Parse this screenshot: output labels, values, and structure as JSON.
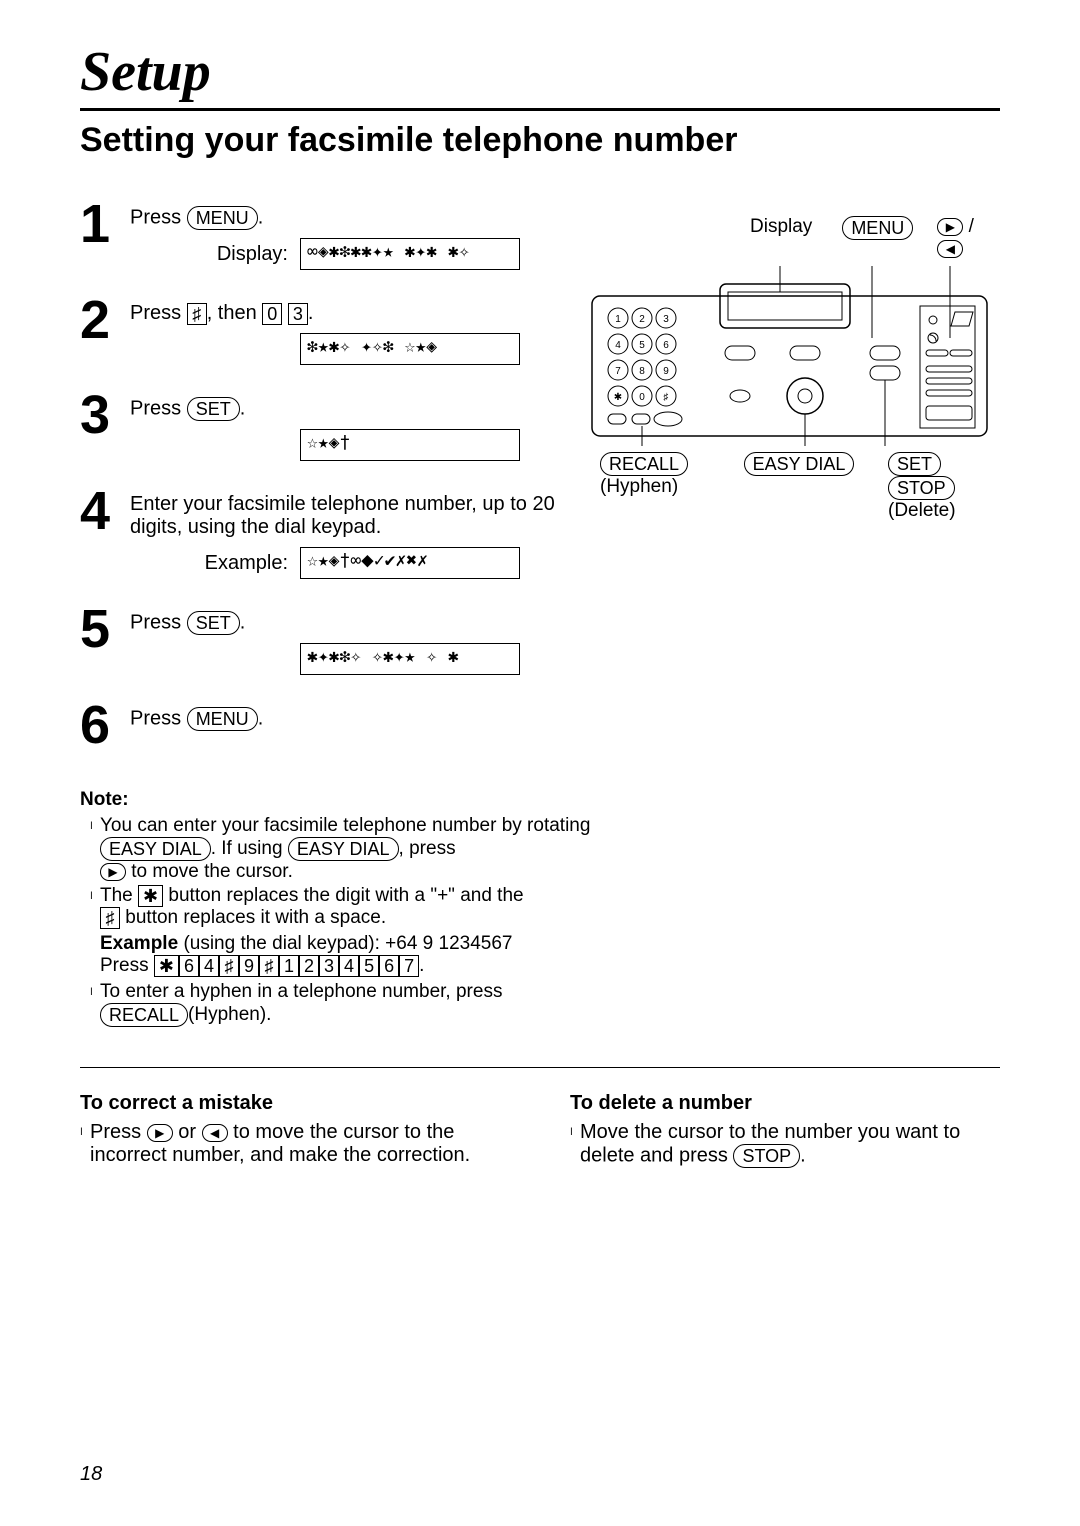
{
  "title": {
    "main": "Setup",
    "sub": "Setting your facsimile telephone number"
  },
  "buttons": {
    "menu": "MENU",
    "set": "SET",
    "easy_dial": "EASY DIAL",
    "recall": "RECALL",
    "stop": "STOP"
  },
  "steps": [
    {
      "num": "1",
      "text_pre": "Press ",
      "btn": "menu",
      "text_post": ".",
      "display_label": "Display:",
      "display_text": "∞◈✱❇✱✱✦★ ✱✦✱ ✱✧"
    },
    {
      "num": "2",
      "text_pre": "Press ",
      "key1": "♯",
      "mid": ", then ",
      "key2": "0",
      "key3": "3",
      "text_post": ".",
      "display_label": "",
      "display_text": "❇★✱✧ ✦✧❇ ☆★◈"
    },
    {
      "num": "3",
      "text_pre": "Press ",
      "btn": "set",
      "text_post": ".",
      "display_label": "",
      "display_text": "☆★◈†"
    },
    {
      "num": "4",
      "text": "Enter your facsimile telephone number, up to 20 digits, using the dial keypad.",
      "display_label": "Example:",
      "display_text": "☆★◈†∞⬥✓✔✗✖✗"
    },
    {
      "num": "5",
      "text_pre": "Press ",
      "btn": "set",
      "text_post": ".",
      "display_label": "",
      "display_text": "✱✦✱❇✧ ✧✱✦★ ✧ ✱"
    },
    {
      "num": "6",
      "text_pre": "Press ",
      "btn": "menu",
      "text_post": "."
    }
  ],
  "diagram": {
    "top_labels": {
      "display": "Display",
      "menu": "MENU"
    },
    "bottom_labels": {
      "recall": "RECALL",
      "hyphen": "(Hyphen)",
      "easy_dial": "EASY DIAL",
      "set": "SET",
      "stop": "STOP",
      "delete": "(Delete)"
    },
    "keypad": [
      "1",
      "2",
      "3",
      "4",
      "5",
      "6",
      "7",
      "8",
      "9",
      "✱",
      "0",
      "♯"
    ]
  },
  "note": {
    "title": "Note:",
    "items": [
      {
        "pre": "You can enter your facsimile telephone number by rotating ",
        "b1": "EASY DIAL",
        "mid": ". If using ",
        "b2": "EASY DIAL",
        "post": ", press",
        "line2_pre": " to move the cursor.",
        "arrow": "▶"
      },
      {
        "pre": "The ",
        "k1": "✱",
        "mid": " button replaces the digit with a \"+\" and the ",
        "k2": "♯",
        "post": " button replaces it with a space."
      },
      {
        "bold_pre": "Example ",
        "plain": "(using the dial keypad):  +64 9 1234567",
        "press": "Press ",
        "keys": [
          "✱",
          "6",
          "4",
          "♯",
          "9",
          "♯",
          "1",
          "2",
          "3",
          "4",
          "5",
          "6",
          "7"
        ],
        "post": "."
      },
      {
        "pre": "To enter a hyphen in a telephone number, press ",
        "b1": "RECALL",
        "post": "(Hyphen)."
      }
    ]
  },
  "bottom": {
    "correct": {
      "title": "To correct a mistake",
      "pre": "Press ",
      "r": "▶",
      "or": " or ",
      "l": "◀",
      "post": " to move the cursor to the incorrect number, and make the correction."
    },
    "delete": {
      "title": "To delete a number",
      "pre": "Move the cursor to the number you want to delete and press ",
      "btn": "STOP",
      "post": "."
    }
  },
  "page": "18",
  "style": {
    "colors": {
      "text": "#000000",
      "bg": "#ffffff"
    },
    "title_main_fontsize": 56,
    "title_sub_fontsize": 34,
    "step_num_fontsize": 54,
    "body_fontsize": 20
  }
}
